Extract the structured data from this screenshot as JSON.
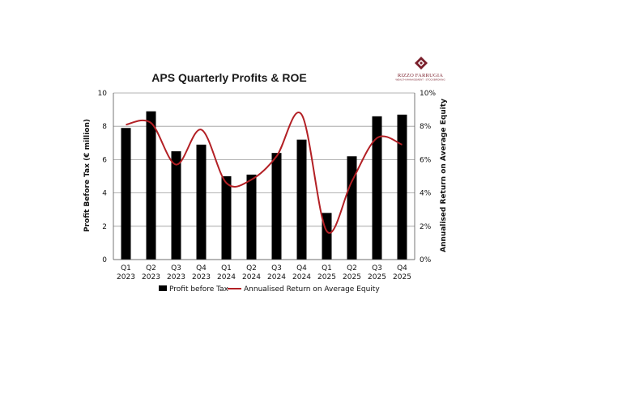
{
  "logo": {
    "name": "RIZZO FARRUGIA",
    "tagline": "WEALTH MANAGEMENT · STOCKBROKING"
  },
  "colors": {
    "bar": "#000000",
    "line": "#b32025",
    "grid": "#9a9a9a",
    "logo": "#7a1f2b"
  },
  "chart_data": {
    "type": "bar",
    "title": "APS Quarterly Profits & ROE",
    "ylabel": "Profit Before Tax (€ million)",
    "y2label": "Annualised Return on Average Equity",
    "categories": [
      [
        "Q1",
        "2023"
      ],
      [
        "Q2",
        "2023"
      ],
      [
        "Q3",
        "2023"
      ],
      [
        "Q4",
        "2023"
      ],
      [
        "Q1",
        "2024"
      ],
      [
        "Q2",
        "2024"
      ],
      [
        "Q3",
        "2024"
      ],
      [
        "Q4",
        "2024"
      ],
      [
        "Q1",
        "2025"
      ],
      [
        "Q2",
        "2025"
      ],
      [
        "Q3",
        "2025"
      ],
      [
        "Q4",
        "2025"
      ]
    ],
    "ylim": [
      0,
      10
    ],
    "yticks": [
      "0",
      "2",
      "4",
      "6",
      "8",
      "10"
    ],
    "y2lim": [
      0,
      10
    ],
    "y2ticks": [
      "0%",
      "2%",
      "4%",
      "6%",
      "8%",
      "10%"
    ],
    "grid": true,
    "legend_position": "bottom",
    "series": [
      {
        "name": "Profit before Tax",
        "type": "bar",
        "axis": "left",
        "values": [
          7.9,
          8.9,
          6.5,
          6.9,
          5.0,
          5.1,
          6.4,
          7.2,
          2.8,
          6.2,
          8.6,
          8.7
        ]
      },
      {
        "name": "Annualised Return on Average Equity",
        "type": "line",
        "axis": "right",
        "smooth": true,
        "values": [
          8.1,
          8.2,
          5.7,
          7.8,
          4.6,
          4.8,
          6.2,
          8.7,
          1.7,
          4.7,
          7.3,
          6.9
        ]
      }
    ]
  }
}
